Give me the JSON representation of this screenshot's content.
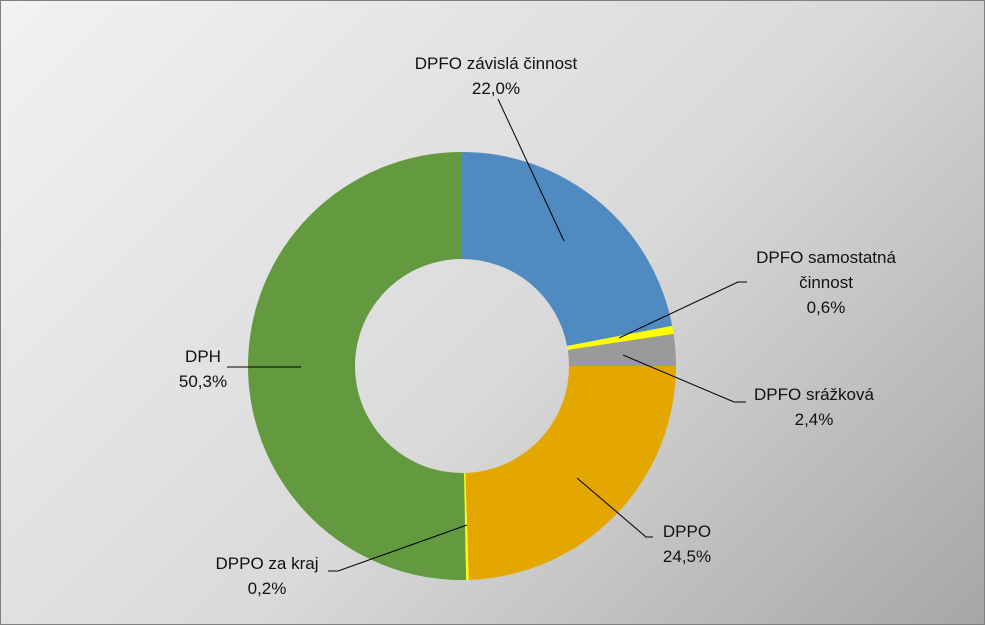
{
  "chart_data": {
    "type": "pie",
    "donut": true,
    "legend": "none",
    "slices": [
      {
        "name": "DPFO závislá činnost",
        "value": 22.0,
        "label_lines": [
          "DPFO závislá činnost"
        ],
        "pct_label": "22,0%",
        "color": "#4f8bc0"
      },
      {
        "name": "DPFO samostatná činnost",
        "value": 0.6,
        "label_lines": [
          "DPFO samostatná",
          "činnost"
        ],
        "pct_label": "0,6%",
        "color": "#ffff00"
      },
      {
        "name": "DPFO srážková",
        "value": 2.4,
        "label_lines": [
          "DPFO srážková"
        ],
        "pct_label": "2,4%",
        "color": "#9a9a9a"
      },
      {
        "name": "DPPO",
        "value": 24.5,
        "label_lines": [
          "DPPO"
        ],
        "pct_label": "24,5%",
        "color": "#e3a700"
      },
      {
        "name": "DPPO za kraj",
        "value": 0.2,
        "label_lines": [
          "DPPO za kraj"
        ],
        "pct_label": "0,2%",
        "color": "#ffff00"
      },
      {
        "name": "DPH",
        "value": 50.3,
        "label_lines": [
          "DPH"
        ],
        "pct_label": "50,3%",
        "color": "#63993f"
      }
    ]
  }
}
